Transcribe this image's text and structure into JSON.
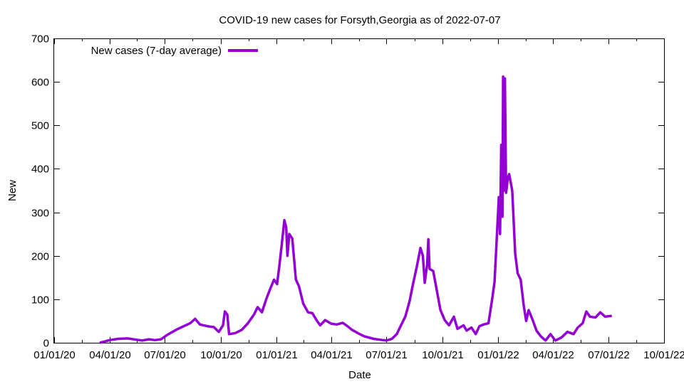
{
  "chart_data": {
    "type": "line",
    "title": "COVID-19 new cases for Forsyth,Georgia as of 2022-07-07",
    "xlabel": "Date",
    "ylabel": "New",
    "xlim": [
      "2020-01-01",
      "2022-10-01"
    ],
    "ylim": [
      0,
      700
    ],
    "x_ticks": [
      "01/01/20",
      "04/01/20",
      "07/01/20",
      "10/01/20",
      "01/01/21",
      "04/01/21",
      "07/01/21",
      "10/01/21",
      "01/01/22",
      "04/01/22",
      "07/01/22",
      "10/01/22"
    ],
    "x_tick_dates": [
      "2020-01-01",
      "2020-04-01",
      "2020-07-01",
      "2020-10-01",
      "2021-01-01",
      "2021-04-01",
      "2021-07-01",
      "2021-10-01",
      "2022-01-01",
      "2022-04-01",
      "2022-07-01",
      "2022-10-01"
    ],
    "y_ticks": [
      0,
      100,
      200,
      300,
      400,
      500,
      600,
      700
    ],
    "grid": false,
    "legend_position": "top-left",
    "series": [
      {
        "name": "New cases (7-day average)",
        "color": "#9400d3",
        "points": [
          [
            "2020-03-16",
            0
          ],
          [
            "2020-03-25",
            3
          ],
          [
            "2020-04-01",
            6
          ],
          [
            "2020-04-15",
            9
          ],
          [
            "2020-05-01",
            10
          ],
          [
            "2020-05-15",
            7
          ],
          [
            "2020-05-25",
            5
          ],
          [
            "2020-06-05",
            8
          ],
          [
            "2020-06-15",
            6
          ],
          [
            "2020-06-25",
            8
          ],
          [
            "2020-07-05",
            18
          ],
          [
            "2020-07-20",
            30
          ],
          [
            "2020-08-01",
            38
          ],
          [
            "2020-08-12",
            45
          ],
          [
            "2020-08-20",
            55
          ],
          [
            "2020-08-28",
            42
          ],
          [
            "2020-09-10",
            38
          ],
          [
            "2020-09-20",
            36
          ],
          [
            "2020-09-28",
            25
          ],
          [
            "2020-10-05",
            40
          ],
          [
            "2020-10-08",
            72
          ],
          [
            "2020-10-12",
            65
          ],
          [
            "2020-10-15",
            20
          ],
          [
            "2020-10-25",
            22
          ],
          [
            "2020-11-05",
            30
          ],
          [
            "2020-11-15",
            45
          ],
          [
            "2020-11-25",
            65
          ],
          [
            "2020-12-01",
            82
          ],
          [
            "2020-12-08",
            70
          ],
          [
            "2020-12-15",
            100
          ],
          [
            "2020-12-22",
            125
          ],
          [
            "2020-12-28",
            145
          ],
          [
            "2021-01-02",
            135
          ],
          [
            "2021-01-06",
            180
          ],
          [
            "2021-01-10",
            230
          ],
          [
            "2021-01-14",
            282
          ],
          [
            "2021-01-17",
            265
          ],
          [
            "2021-01-19",
            200
          ],
          [
            "2021-01-22",
            250
          ],
          [
            "2021-01-27",
            240
          ],
          [
            "2021-02-02",
            145
          ],
          [
            "2021-02-07",
            130
          ],
          [
            "2021-02-14",
            90
          ],
          [
            "2021-02-22",
            70
          ],
          [
            "2021-03-01",
            68
          ],
          [
            "2021-03-08",
            52
          ],
          [
            "2021-03-14",
            40
          ],
          [
            "2021-03-22",
            52
          ],
          [
            "2021-04-01",
            44
          ],
          [
            "2021-04-10",
            42
          ],
          [
            "2021-04-20",
            46
          ],
          [
            "2021-04-28",
            38
          ],
          [
            "2021-05-05",
            30
          ],
          [
            "2021-05-15",
            22
          ],
          [
            "2021-05-25",
            15
          ],
          [
            "2021-06-10",
            9
          ],
          [
            "2021-06-25",
            6
          ],
          [
            "2021-07-01",
            5
          ],
          [
            "2021-07-10",
            9
          ],
          [
            "2021-07-18",
            20
          ],
          [
            "2021-07-25",
            40
          ],
          [
            "2021-08-01",
            60
          ],
          [
            "2021-08-08",
            95
          ],
          [
            "2021-08-13",
            130
          ],
          [
            "2021-08-20",
            175
          ],
          [
            "2021-08-26",
            218
          ],
          [
            "2021-08-30",
            200
          ],
          [
            "2021-09-02",
            138
          ],
          [
            "2021-09-06",
            180
          ],
          [
            "2021-09-08",
            238
          ],
          [
            "2021-09-10",
            170
          ],
          [
            "2021-09-16",
            165
          ],
          [
            "2021-09-22",
            120
          ],
          [
            "2021-09-28",
            75
          ],
          [
            "2021-10-05",
            52
          ],
          [
            "2021-10-12",
            40
          ],
          [
            "2021-10-20",
            60
          ],
          [
            "2021-10-26",
            32
          ],
          [
            "2021-11-05",
            40
          ],
          [
            "2021-11-10",
            28
          ],
          [
            "2021-11-18",
            35
          ],
          [
            "2021-11-25",
            20
          ],
          [
            "2021-12-01",
            38
          ],
          [
            "2021-12-08",
            42
          ],
          [
            "2021-12-16",
            45
          ],
          [
            "2021-12-22",
            100
          ],
          [
            "2021-12-26",
            140
          ],
          [
            "2021-12-30",
            250
          ],
          [
            "2022-01-02",
            335
          ],
          [
            "2022-01-04",
            250
          ],
          [
            "2022-01-06",
            455
          ],
          [
            "2022-01-08",
            290
          ],
          [
            "2022-01-09",
            612
          ],
          [
            "2022-01-11",
            350
          ],
          [
            "2022-01-12",
            608
          ],
          [
            "2022-01-14",
            345
          ],
          [
            "2022-01-17",
            380
          ],
          [
            "2022-01-19",
            388
          ],
          [
            "2022-01-24",
            350
          ],
          [
            "2022-01-29",
            205
          ],
          [
            "2022-02-02",
            160
          ],
          [
            "2022-02-07",
            145
          ],
          [
            "2022-02-12",
            85
          ],
          [
            "2022-02-16",
            50
          ],
          [
            "2022-02-20",
            75
          ],
          [
            "2022-02-26",
            55
          ],
          [
            "2022-03-05",
            28
          ],
          [
            "2022-03-12",
            15
          ],
          [
            "2022-03-20",
            5
          ],
          [
            "2022-03-28",
            20
          ],
          [
            "2022-04-05",
            5
          ],
          [
            "2022-04-15",
            12
          ],
          [
            "2022-04-25",
            25
          ],
          [
            "2022-05-05",
            20
          ],
          [
            "2022-05-12",
            35
          ],
          [
            "2022-05-20",
            45
          ],
          [
            "2022-05-26",
            72
          ],
          [
            "2022-06-01",
            60
          ],
          [
            "2022-06-10",
            58
          ],
          [
            "2022-06-18",
            70
          ],
          [
            "2022-06-26",
            60
          ],
          [
            "2022-07-07",
            62
          ]
        ]
      }
    ]
  }
}
